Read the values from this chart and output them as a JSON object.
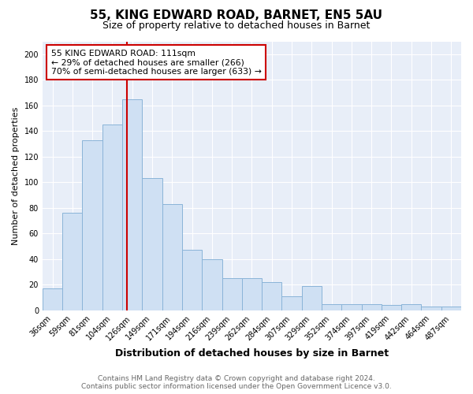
{
  "title": "55, KING EDWARD ROAD, BARNET, EN5 5AU",
  "subtitle": "Size of property relative to detached houses in Barnet",
  "xlabel": "Distribution of detached houses by size in Barnet",
  "ylabel": "Number of detached properties",
  "categories": [
    "36sqm",
    "59sqm",
    "81sqm",
    "104sqm",
    "126sqm",
    "149sqm",
    "171sqm",
    "194sqm",
    "216sqm",
    "239sqm",
    "262sqm",
    "284sqm",
    "307sqm",
    "329sqm",
    "352sqm",
    "374sqm",
    "397sqm",
    "419sqm",
    "442sqm",
    "464sqm",
    "487sqm"
  ],
  "values": [
    17,
    76,
    133,
    145,
    165,
    103,
    83,
    47,
    40,
    25,
    25,
    22,
    11,
    19,
    5,
    5,
    5,
    4,
    5,
    3,
    3
  ],
  "bar_color": "#cfe0f3",
  "bar_edge_color": "#8ab4d8",
  "annotation_text_line1": "55 KING EDWARD ROAD: 111sqm",
  "annotation_text_line2": "← 29% of detached houses are smaller (266)",
  "annotation_text_line3": "70% of semi-detached houses are larger (633) →",
  "annotation_box_facecolor": "#ffffff",
  "annotation_box_edgecolor": "#cc0000",
  "vline_color": "#cc0000",
  "vline_x_index": 3.72,
  "ylim": [
    0,
    210
  ],
  "yticks": [
    0,
    20,
    40,
    60,
    80,
    100,
    120,
    140,
    160,
    180,
    200
  ],
  "footer_line1": "Contains HM Land Registry data © Crown copyright and database right 2024.",
  "footer_line2": "Contains public sector information licensed under the Open Government Licence v3.0.",
  "bg_color": "#ffffff",
  "plot_bg_color": "#e8eef8",
  "grid_color": "#ffffff",
  "title_fontsize": 11,
  "subtitle_fontsize": 9,
  "tick_fontsize": 7,
  "xlabel_fontsize": 9,
  "ylabel_fontsize": 8,
  "footer_fontsize": 6.5,
  "footer_color": "#666666"
}
